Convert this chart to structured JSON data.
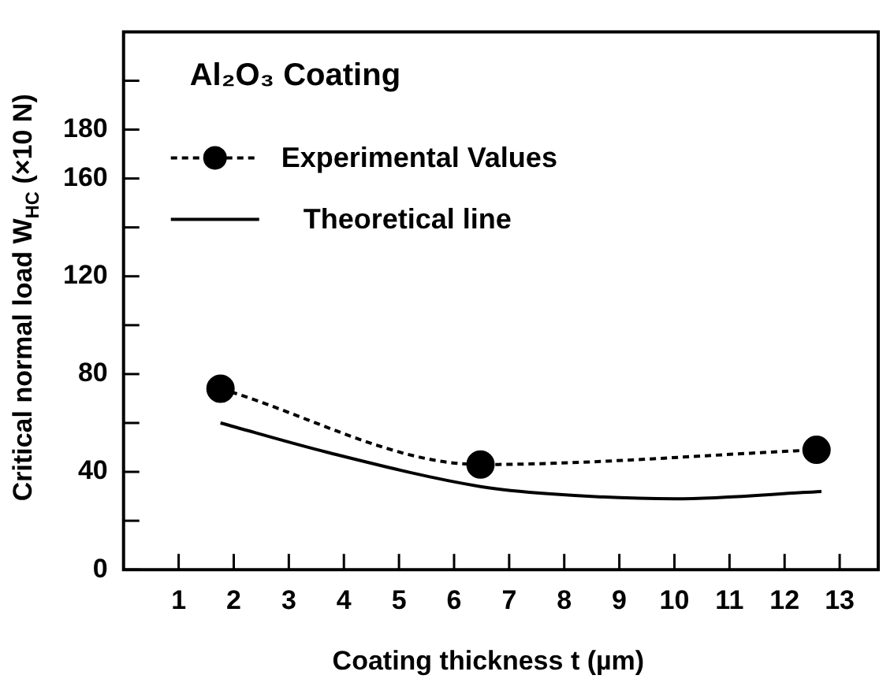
{
  "chart_data": {
    "type": "line",
    "title": "Al₂O₃ Coating",
    "xlabel": "Coating thickness t (µm)",
    "ylabel": "Critical normal load W$_{HC}$ (×10 N)",
    "xlim": [
      0,
      13.7
    ],
    "xticks": [
      1,
      2,
      3,
      4,
      5,
      6,
      7,
      8,
      9,
      10,
      11,
      12,
      13
    ],
    "ylim": [
      0,
      220
    ],
    "yticks": [
      0,
      {
        "value": 20,
        "label": null
      },
      40,
      {
        "value": 60,
        "label": null
      },
      80,
      {
        "value": 100,
        "label": null
      },
      120,
      {
        "value": 140,
        "label": null
      },
      160,
      180,
      {
        "value": 200,
        "label": null
      }
    ],
    "legend": "top left",
    "grid": false,
    "series": [
      {
        "name": "Experimental Values",
        "color": "#000000",
        "marker": "circle",
        "line_style": "dashed",
        "x": [
          1.76,
          6.48,
          12.58
        ],
        "values": [
          74,
          43,
          49
        ]
      },
      {
        "name": "Theoretical line",
        "color": "#000000",
        "marker": "none",
        "line_style": "solid",
        "x": [
          1.76,
          3.7,
          6.48,
          7.75,
          10.0,
          12.67
        ],
        "values": [
          60,
          48,
          34,
          31,
          29,
          32
        ]
      }
    ]
  }
}
